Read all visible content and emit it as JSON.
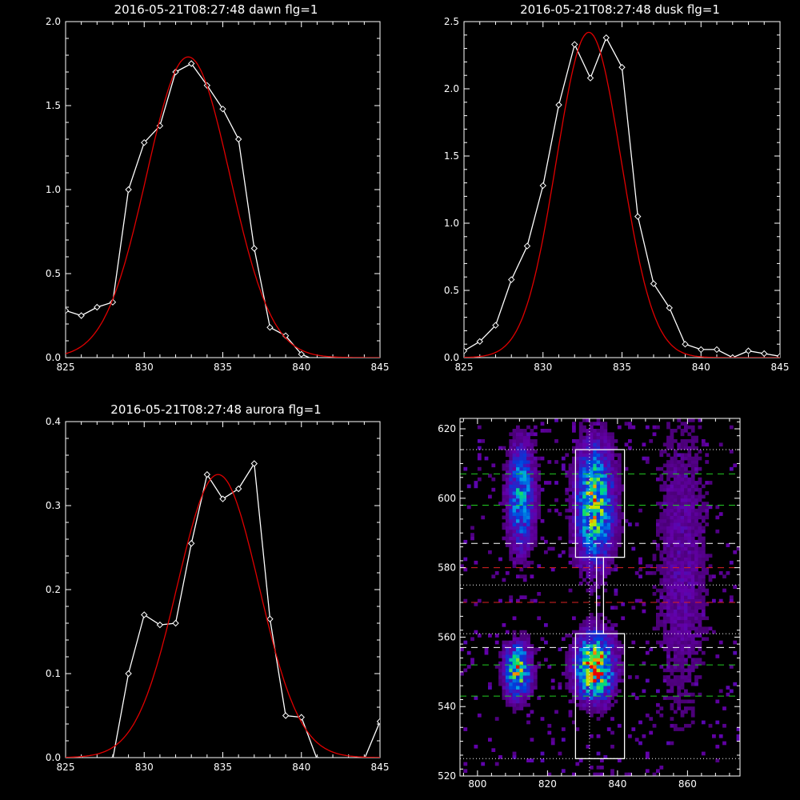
{
  "colors": {
    "background": "#000000",
    "axis": "#ffffff",
    "data_line": "#ffffff",
    "fit_line": "#e00000",
    "green_dash": "#22cc22",
    "red_dash": "#dd2222",
    "white_dash": "#ffffff"
  },
  "chart_data": [
    {
      "type": "line",
      "title": "2016-05-21T08:27:48 dawn flg=1",
      "xlim": [
        825,
        845
      ],
      "ylim": [
        0,
        2
      ],
      "xticks": [
        "825",
        "830",
        "835",
        "840",
        "845"
      ],
      "yticks": [
        "0.0",
        "0.5",
        "1.0",
        "1.5",
        "2.0"
      ],
      "series": [
        {
          "style": "line-diamond",
          "x": [
            825,
            826,
            827,
            828,
            829,
            830,
            831,
            832,
            833,
            834,
            835,
            836,
            837,
            838,
            839,
            840,
            841,
            842,
            843,
            844,
            845
          ],
          "y": [
            0.28,
            0.25,
            0.3,
            0.33,
            1.0,
            1.28,
            1.38,
            1.7,
            1.75,
            1.62,
            1.48,
            1.3,
            0.65,
            0.18,
            0.13,
            0.02,
            -0.02,
            -0.02,
            -0.02,
            -0.02,
            -0.02
          ]
        },
        {
          "style": "fit",
          "gaussian": {
            "amp": 1.79,
            "center": 832.8,
            "sigma": 2.65
          }
        }
      ]
    },
    {
      "type": "line",
      "title": "2016-05-21T08:27:48 dusk flg=1",
      "xlim": [
        825,
        845
      ],
      "ylim": [
        0,
        2.5
      ],
      "xticks": [
        "825",
        "830",
        "835",
        "840",
        "845"
      ],
      "yticks": [
        "0.0",
        "0.5",
        "1.0",
        "1.5",
        "2.0",
        "2.5"
      ],
      "series": [
        {
          "style": "line-diamond",
          "x": [
            825,
            826,
            827,
            828,
            829,
            830,
            831,
            832,
            833,
            834,
            835,
            836,
            837,
            838,
            839,
            840,
            841,
            842,
            843,
            844,
            845
          ],
          "y": [
            0.05,
            0.12,
            0.24,
            0.58,
            0.83,
            1.28,
            1.88,
            2.33,
            2.08,
            2.38,
            2.16,
            1.05,
            0.55,
            0.37,
            0.1,
            0.06,
            0.06,
            0.0,
            0.05,
            0.03,
            0.01
          ]
        },
        {
          "style": "fit",
          "gaussian": {
            "amp": 2.42,
            "center": 832.9,
            "sigma": 2.05
          }
        }
      ]
    },
    {
      "type": "line",
      "title": "2016-05-21T08:27:48 aurora flg=1",
      "xlim": [
        825,
        845
      ],
      "ylim": [
        0,
        0.4
      ],
      "xticks": [
        "825",
        "830",
        "835",
        "840",
        "845"
      ],
      "yticks": [
        "0.0",
        "0.1",
        "0.2",
        "0.3",
        "0.4"
      ],
      "series": [
        {
          "style": "line-diamond",
          "x": [
            825,
            826,
            827,
            828,
            829,
            830,
            831,
            832,
            833,
            834,
            835,
            836,
            837,
            838,
            839,
            840,
            841,
            842,
            843,
            844,
            845
          ],
          "y": [
            -0.005,
            -0.002,
            -0.005,
            -0.002,
            0.1,
            0.17,
            0.158,
            0.16,
            0.255,
            0.337,
            0.308,
            0.32,
            0.35,
            0.165,
            0.05,
            0.048,
            -0.002,
            -0.005,
            -0.005,
            -0.002,
            0.043
          ]
        },
        {
          "style": "fit",
          "gaussian": {
            "amp": 0.337,
            "center": 834.7,
            "sigma": 2.6
          }
        }
      ]
    },
    {
      "type": "heatmap",
      "xlim": [
        795,
        875
      ],
      "ylim": [
        520,
        623
      ],
      "xticks": [
        "800",
        "820",
        "840",
        "860"
      ],
      "yticks": [
        "520",
        "540",
        "560",
        "580",
        "600",
        "620"
      ],
      "xtick_values": [
        800,
        820,
        840,
        860
      ],
      "ytick_values": [
        520,
        540,
        560,
        580,
        600,
        620
      ],
      "clusters": [
        {
          "x": 811,
          "y": 550,
          "sx": 2.5,
          "sy": 5,
          "amp": 0.75
        },
        {
          "x": 812,
          "y": 600,
          "sx": 2.5,
          "sy": 10,
          "amp": 0.55
        },
        {
          "x": 833,
          "y": 551,
          "sx": 3.5,
          "sy": 6,
          "amp": 1.0
        },
        {
          "x": 833,
          "y": 598,
          "sx": 3.5,
          "sy": 11,
          "amp": 0.75
        },
        {
          "x": 858,
          "y": 580,
          "sx": 5,
          "sy": 30,
          "amp": 0.15
        }
      ],
      "boxes": [
        {
          "x0": 828,
          "x1": 842,
          "y0": 583,
          "y1": 614
        },
        {
          "x0": 828,
          "x1": 842,
          "y0": 525,
          "y1": 561
        }
      ],
      "connector": {
        "x0": 834,
        "x1": 836,
        "y0": 561,
        "y1": 583
      },
      "vertical_dotted_x": 832,
      "hlines": [
        {
          "y": 614,
          "style": "dotted",
          "color": "white"
        },
        {
          "y": 607,
          "style": "dashed",
          "color": "green"
        },
        {
          "y": 598,
          "style": "dashed",
          "color": "green"
        },
        {
          "y": 587,
          "style": "dashed",
          "color": "white"
        },
        {
          "y": 580,
          "style": "dashed",
          "color": "red"
        },
        {
          "y": 575,
          "style": "dotted",
          "color": "white"
        },
        {
          "y": 570,
          "style": "dashed",
          "color": "red"
        },
        {
          "y": 561,
          "style": "dotted",
          "color": "white"
        },
        {
          "y": 557,
          "style": "dashed",
          "color": "white"
        },
        {
          "y": 552,
          "style": "dashed",
          "color": "green"
        },
        {
          "y": 543,
          "style": "dashed",
          "color": "green"
        },
        {
          "y": 525,
          "style": "dotted",
          "color": "white"
        }
      ]
    }
  ]
}
